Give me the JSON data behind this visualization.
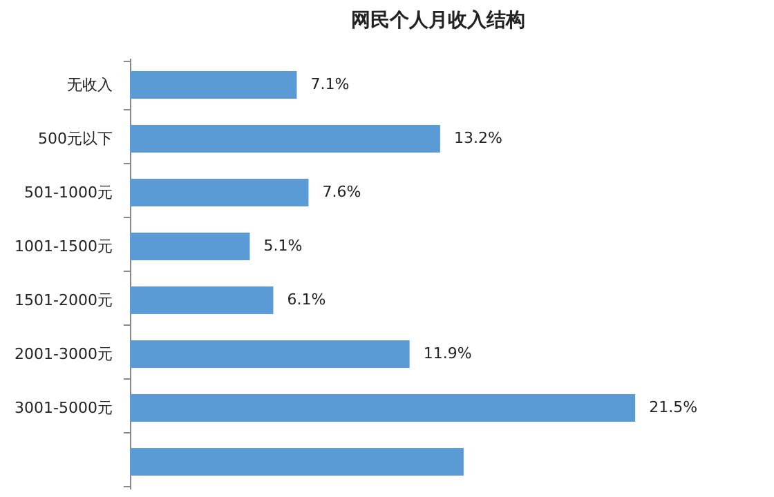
{
  "chart_data": {
    "type": "bar",
    "orientation": "horizontal",
    "title": "网民个人月收入结构",
    "categories": [
      "无收入",
      "500元以下",
      "501-1000元",
      "1001-1500元",
      "1501-2000元",
      "2001-3000元",
      "3001-5000元",
      null
    ],
    "values": [
      7.1,
      13.2,
      7.6,
      5.1,
      6.1,
      11.9,
      21.5,
      14.2
    ],
    "value_labels": [
      "7.1%",
      "13.2%",
      "7.6%",
      "5.1%",
      "6.1%",
      "11.9%",
      "21.5%",
      null
    ],
    "color": "#5b9bd5"
  }
}
